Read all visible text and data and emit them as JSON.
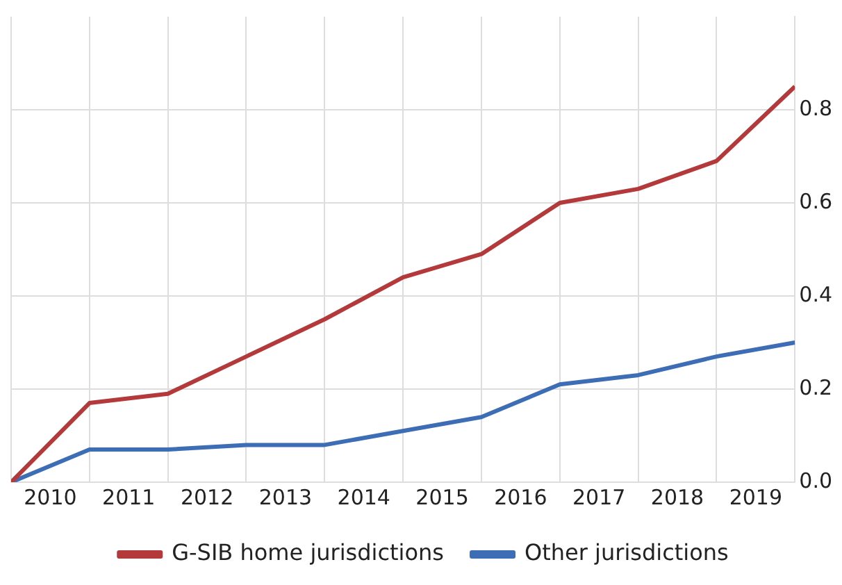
{
  "chart_data": {
    "type": "line",
    "x": [
      2010,
      2011,
      2012,
      2013,
      2014,
      2015,
      2016,
      2017,
      2018,
      2019,
      2020
    ],
    "series": [
      {
        "name": "G-SIB home jurisdictions",
        "color": "#b3393b",
        "values": [
          0,
          0.17,
          0.19,
          0.27,
          0.35,
          0.44,
          0.49,
          0.6,
          0.63,
          0.69,
          0.85
        ]
      },
      {
        "name": "Other jurisdictions",
        "color": "#3d6db5",
        "values": [
          0,
          0.07,
          0.07,
          0.08,
          0.08,
          0.11,
          0.14,
          0.21,
          0.23,
          0.27,
          0.3
        ]
      }
    ],
    "xlim": [
      2010,
      2020
    ],
    "xticks": [
      {
        "value": 2010,
        "label": null
      },
      {
        "value": 2010.5,
        "label": "2010"
      },
      {
        "value": 2011,
        "label": null
      },
      {
        "value": 2011.5,
        "label": "2011"
      },
      {
        "value": 2012,
        "label": null
      },
      {
        "value": 2012.5,
        "label": "2012"
      },
      {
        "value": 2013,
        "label": null
      },
      {
        "value": 2013.5,
        "label": "2013"
      },
      {
        "value": 2014,
        "label": null
      },
      {
        "value": 2014.5,
        "label": "2014"
      },
      {
        "value": 2015,
        "label": null
      },
      {
        "value": 2015.5,
        "label": "2015"
      },
      {
        "value": 2016,
        "label": null
      },
      {
        "value": 2016.5,
        "label": "2016"
      },
      {
        "value": 2017,
        "label": null
      },
      {
        "value": 2017.5,
        "label": "2017"
      },
      {
        "value": 2018,
        "label": null
      },
      {
        "value": 2018.5,
        "label": "2018"
      },
      {
        "value": 2019,
        "label": null
      },
      {
        "value": 2019.5,
        "label": "2019"
      },
      {
        "value": 2020,
        "label": null
      }
    ],
    "ylim": [
      0,
      1
    ],
    "yticks": [
      {
        "value": 0,
        "label": "0.0"
      },
      0.2,
      0.4,
      0.6,
      0.8
    ],
    "grid": true,
    "legend": "bottom",
    "marker": "none",
    "line_style": "solid"
  }
}
